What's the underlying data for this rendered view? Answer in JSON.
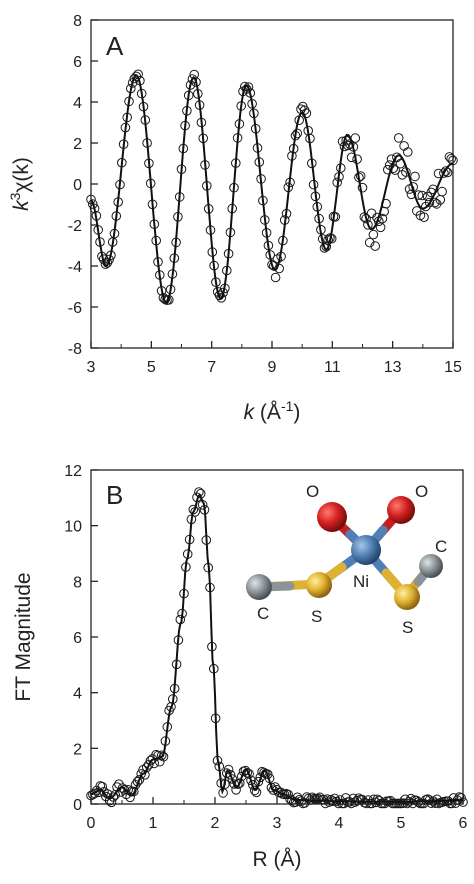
{
  "chart_data": [
    {
      "panel": "A",
      "type": "scatter",
      "xlabel": {
        "pre": "k",
        "mid": " (Å",
        "sup": "-1",
        "post": ")"
      },
      "ylabel": {
        "pre": "k",
        "sup": "3",
        "post": "χ(k)"
      },
      "xlim": [
        3,
        15
      ],
      "ylim": [
        -8,
        8
      ],
      "xticks": [
        3,
        5,
        7,
        9,
        11,
        13,
        15
      ],
      "yticks": [
        8,
        6,
        4,
        2,
        0,
        -2,
        -4,
        -6,
        -8
      ],
      "grid": false,
      "series": [
        {
          "kind": "points",
          "marker": "open-circle",
          "x": [],
          "y": []
        },
        {
          "kind": "line",
          "x": [],
          "y": []
        }
      ],
      "fit_model": {
        "description": "damped sinusoid approximating the fit curve",
        "knots_x": [
          3.0,
          3.5,
          4.5,
          5.5,
          6.4,
          7.3,
          8.15,
          9.1,
          10.0,
          10.8,
          11.5,
          12.3,
          13.2,
          14.0,
          15.0
        ],
        "knots_y": [
          -0.8,
          -4.0,
          5.3,
          -5.8,
          5.2,
          -5.6,
          4.8,
          -4.2,
          3.5,
          -3.2,
          2.4,
          -2.2,
          1.4,
          -1.2,
          1.0
        ]
      }
    },
    {
      "panel": "B",
      "type": "scatter",
      "xlabel": "R (Å)",
      "ylabel": "FT Magnitude",
      "xlim": [
        0,
        6
      ],
      "ylim": [
        0,
        12
      ],
      "xticks": [
        0,
        1,
        2,
        3,
        4,
        5,
        6
      ],
      "yticks": [
        12,
        10,
        8,
        6,
        4,
        2,
        0
      ],
      "grid": false,
      "series": [
        {
          "kind": "points",
          "marker": "open-circle",
          "x": [],
          "y": []
        },
        {
          "kind": "line",
          "x": [],
          "y": []
        }
      ],
      "curve_knots": {
        "x": [
          0.0,
          0.15,
          0.3,
          0.5,
          0.65,
          0.85,
          1.0,
          1.15,
          1.3,
          1.45,
          1.55,
          1.65,
          1.75,
          1.82,
          1.9,
          1.97,
          2.05,
          2.12,
          2.2,
          2.35,
          2.5,
          2.65,
          2.8,
          2.95,
          3.1,
          3.3,
          3.6,
          4.0,
          4.5,
          5.0,
          5.5,
          5.8,
          6.0
        ],
        "y": [
          0.35,
          0.5,
          0.2,
          0.6,
          0.3,
          1.1,
          1.6,
          1.7,
          3.5,
          6.5,
          8.8,
          10.5,
          11.1,
          10.8,
          8.5,
          5.0,
          1.5,
          0.45,
          1.2,
          0.6,
          1.25,
          0.5,
          1.2,
          0.5,
          0.35,
          0.15,
          0.12,
          0.1,
          0.08,
          0.08,
          0.1,
          0.12,
          0.15
        ]
      },
      "inset_molecule": {
        "atoms": [
          {
            "label": "O",
            "color": "#cc1f1f"
          },
          {
            "label": "O",
            "color": "#cc1f1f"
          },
          {
            "label": "Ni",
            "color": "#4e7fb5"
          },
          {
            "label": "S",
            "color": "#e0b030"
          },
          {
            "label": "S",
            "color": "#e0b030"
          },
          {
            "label": "C",
            "color": "#8a9398"
          },
          {
            "label": "C",
            "color": "#8a9398"
          }
        ]
      }
    }
  ]
}
